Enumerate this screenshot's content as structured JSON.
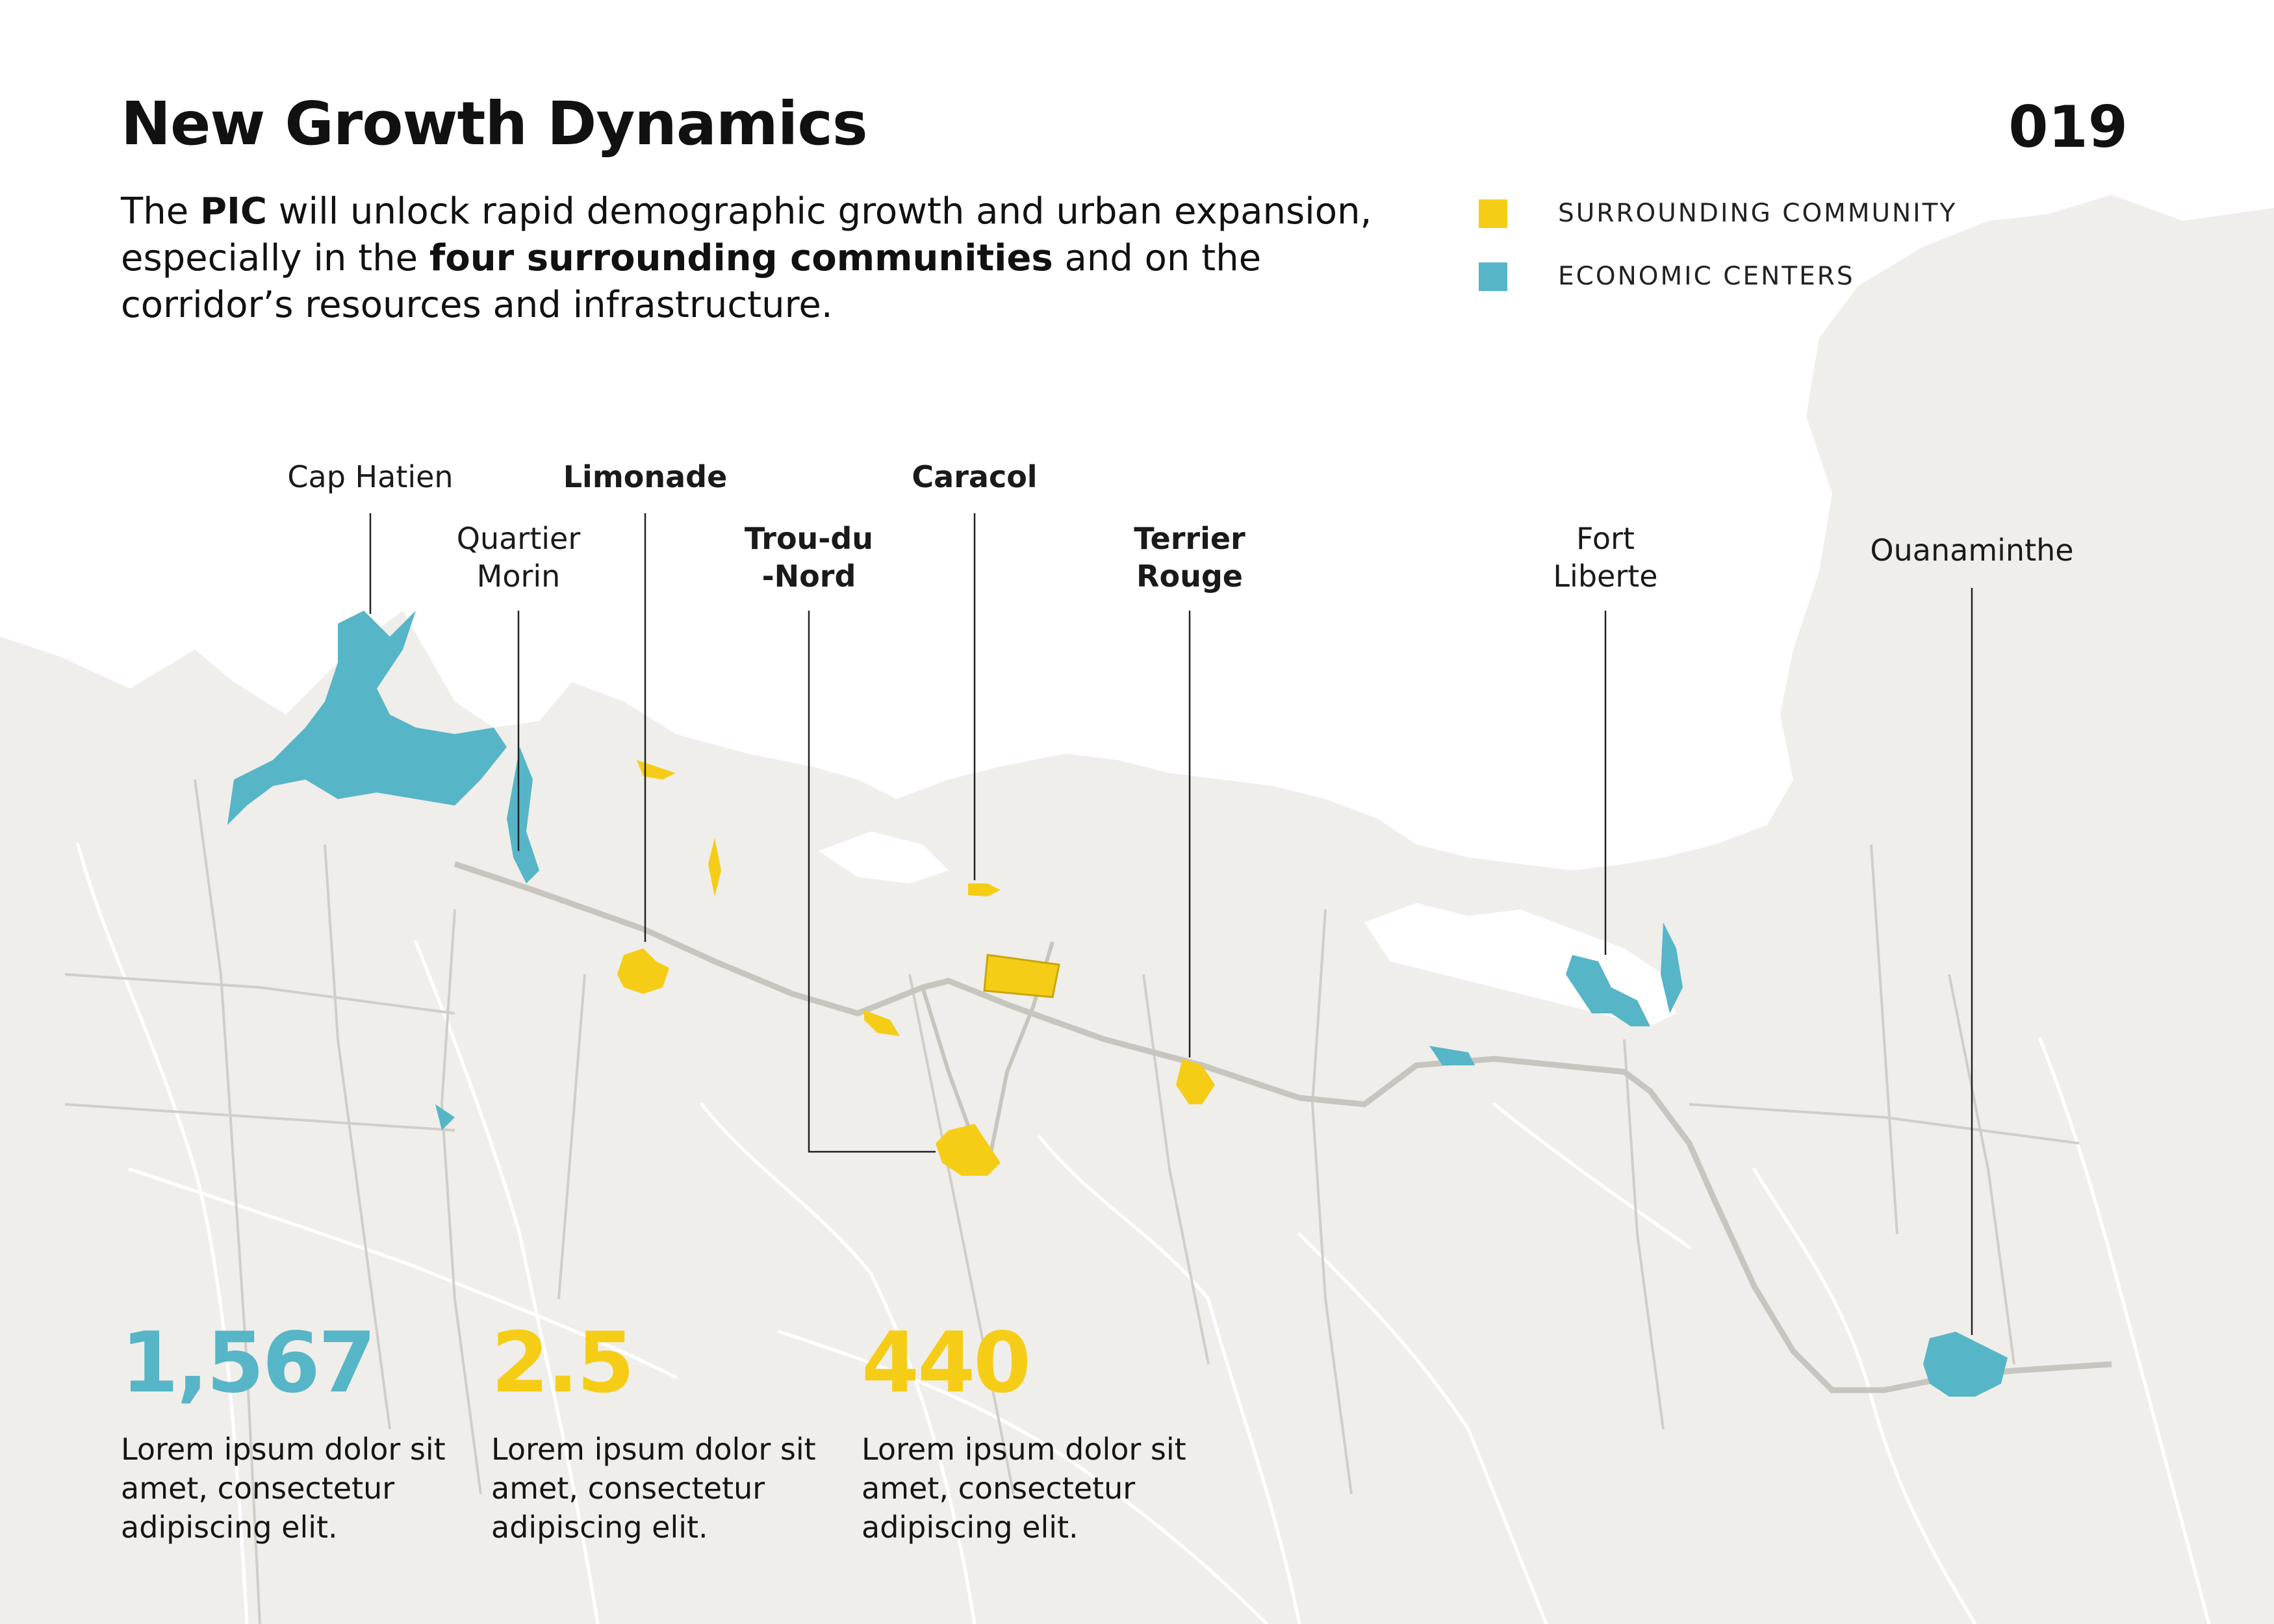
{
  "header": {
    "title": "New Growth Dynamics",
    "page_number": "019"
  },
  "intro": {
    "text_1": "The ",
    "bold_1": "PIC",
    "text_2": " will unlock rapid demographic growth and urban expansion, especially in the ",
    "bold_2": "four surrounding communities",
    "text_3": " and on the corridor’s resources and infrastructure."
  },
  "legend": {
    "surrounding_label": "SURROUNDING COMMUNITY",
    "surrounding_color": "#f5cd16",
    "economic_label": "ECONOMIC CENTERS",
    "economic_color": "#56b5c6"
  },
  "map": {
    "land_color": "#efeeea",
    "road_color": "#cfcdc6",
    "river_color": "#ffffff"
  },
  "places": [
    {
      "line1": "Cap Hatien",
      "line2": "",
      "bold": false,
      "category": "economic"
    },
    {
      "line1": "Quartier",
      "line2": "Morin",
      "bold": false,
      "category": "economic"
    },
    {
      "line1": "Limonade",
      "line2": "",
      "bold": true,
      "category": "surrounding"
    },
    {
      "line1": "Trou-du",
      "line2": "-Nord",
      "bold": true,
      "category": "surrounding"
    },
    {
      "line1": "Caracol",
      "line2": "",
      "bold": true,
      "category": "surrounding"
    },
    {
      "line1": "Terrier",
      "line2": "Rouge",
      "bold": true,
      "category": "surrounding"
    },
    {
      "line1": "Fort",
      "line2": "Liberte",
      "bold": false,
      "category": "economic"
    },
    {
      "line1": "Ouanaminthe",
      "line2": "",
      "bold": false,
      "category": "economic"
    }
  ],
  "stats": [
    {
      "value": "1,567",
      "color": "#56b5c6",
      "desc": "Lorem ipsum dolor sit amet, consectetur adipiscing elit."
    },
    {
      "value": "2.5",
      "color": "#f5cd16",
      "desc": "Lorem ipsum dolor sit amet, consectetur adipiscing elit."
    },
    {
      "value": "440",
      "color": "#f5cd16",
      "desc": "Lorem ipsum dolor sit amet, consectetur adipiscing elit."
    }
  ]
}
